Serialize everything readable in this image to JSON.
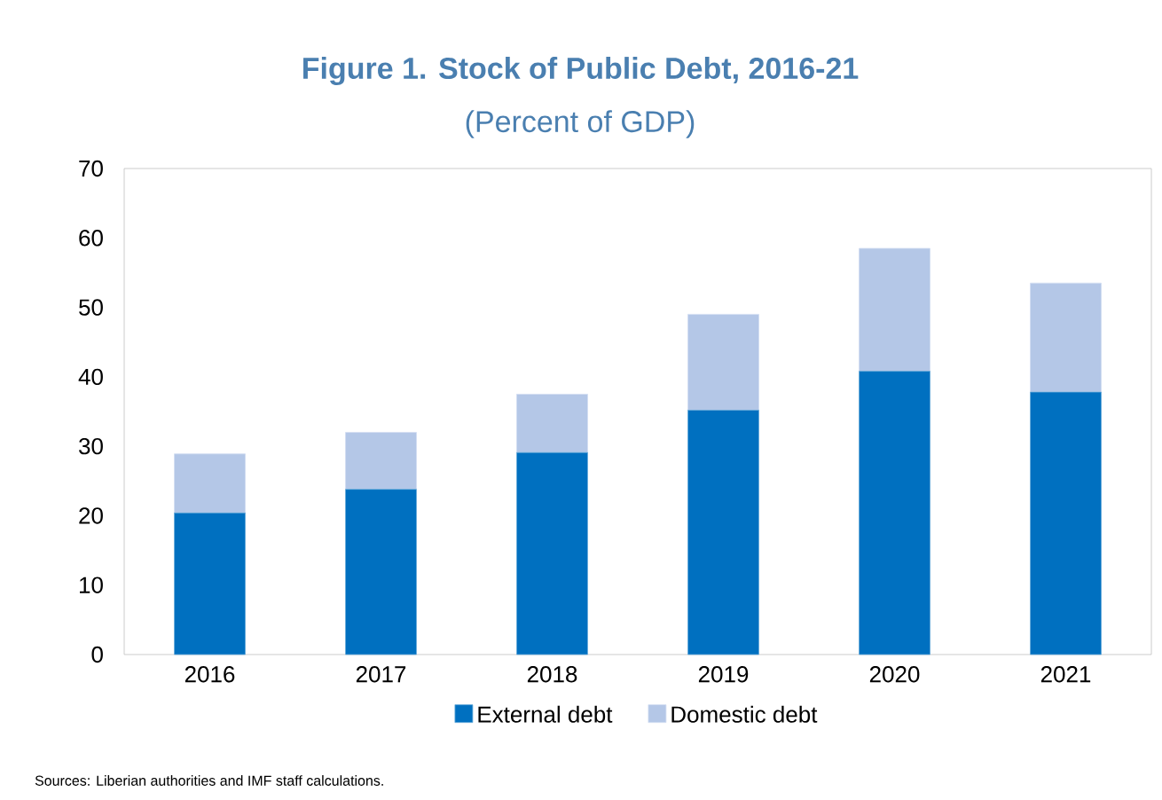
{
  "chart_data": {
    "type": "bar",
    "stacked": true,
    "title": "Figure 1. Stock of Public Debt, 2016-21",
    "subtitle": "(Percent of GDP)",
    "categories": [
      "2016",
      "2017",
      "2018",
      "2019",
      "2020",
      "2021"
    ],
    "series": [
      {
        "name": "External debt",
        "color": "#0070c0",
        "values": [
          20.4,
          23.8,
          29.1,
          35.2,
          40.8,
          37.8
        ]
      },
      {
        "name": "Domestic debt",
        "color": "#b4c7e7",
        "values": [
          8.5,
          8.2,
          8.4,
          13.8,
          17.7,
          15.7
        ]
      }
    ],
    "ylim": [
      0,
      70
    ],
    "yticks": [
      0,
      10,
      20,
      30,
      40,
      50,
      60,
      70
    ],
    "grid": false,
    "legend": "bottom",
    "annotations": [
      "Sources: Liberian authorities and IMF staff calculations."
    ]
  }
}
